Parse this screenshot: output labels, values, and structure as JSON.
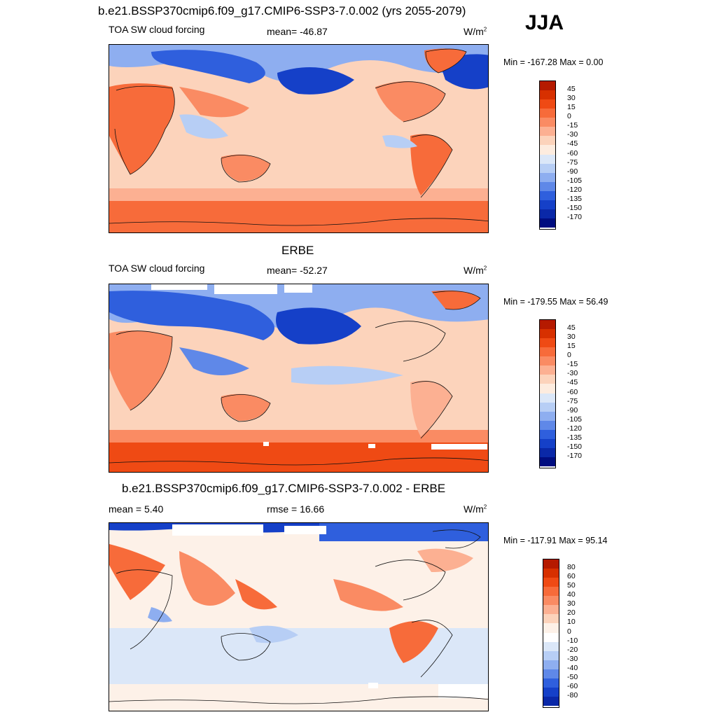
{
  "header": {
    "title": "b.e21.BSSP370cmip6.f09_g17.CMIP6-SSP3-7.0.002 (yrs 2055-2079)",
    "season": "JJA"
  },
  "panels": [
    {
      "title": "",
      "left_label": "TOA SW cloud forcing",
      "center_label": "mean= -46.87",
      "units": "W/m",
      "units_sup": "2",
      "minmax": "Min = -167.28 Max =   0.00",
      "colorbar_labels": [
        "45",
        "30",
        "15",
        "0",
        "-15",
        "-30",
        "-45",
        "-60",
        "-75",
        "-90",
        "-105",
        "-120",
        "-135",
        "-150",
        "-170"
      ]
    },
    {
      "title": "ERBE",
      "left_label": "TOA SW cloud forcing",
      "center_label": "mean= -52.27",
      "units": "W/m",
      "units_sup": "2",
      "minmax": "Min = -179.55 Max =  56.49",
      "colorbar_labels": [
        "45",
        "30",
        "15",
        "0",
        "-15",
        "-30",
        "-45",
        "-60",
        "-75",
        "-90",
        "-105",
        "-120",
        "-135",
        "-150",
        "-170"
      ]
    },
    {
      "title": "b.e21.BSSP370cmip6.f09_g17.CMIP6-SSP3-7.0.002 - ERBE",
      "left_label": "mean =   5.40",
      "center_label": "rmse =  16.66",
      "units": "W/m",
      "units_sup": "2",
      "minmax": "Min = -117.91 Max =  95.14",
      "colorbar_labels": [
        "80",
        "60",
        "50",
        "40",
        "30",
        "20",
        "10",
        "0",
        "-10",
        "-20",
        "-30",
        "-40",
        "-50",
        "-60",
        "-80"
      ]
    }
  ],
  "colors": {
    "forcing_scale": [
      "#8b0000",
      "#b51a00",
      "#d73000",
      "#ef4a14",
      "#f76b3a",
      "#fa8b63",
      "#fcb092",
      "#fcd3bb",
      "#fdecdf",
      "#dbe7f8",
      "#b7cef5",
      "#8eaef0",
      "#5f88e8",
      "#2f5fdd",
      "#1540c8",
      "#0a28a8",
      "#000d80"
    ],
    "diff_scale": [
      "#8b0000",
      "#b51a00",
      "#d73000",
      "#ef4a14",
      "#f76b3a",
      "#fa8b63",
      "#fcb092",
      "#fcd3bb",
      "#fdf1e8",
      "#ffffff",
      "#dbe7f8",
      "#b7cef5",
      "#8eaef0",
      "#5f88e8",
      "#2f5fdd",
      "#1540c8",
      "#0a28a8",
      "#000d80"
    ]
  },
  "chart_data": [
    {
      "type": "heatmap",
      "title": "",
      "variable": "TOA SW cloud forcing",
      "mean": -46.87,
      "min": -167.28,
      "max": 0.0,
      "units": "W/m2",
      "levels": [
        45,
        30,
        15,
        0,
        -15,
        -30,
        -45,
        -60,
        -75,
        -90,
        -105,
        -120,
        -135,
        -150,
        -170
      ]
    },
    {
      "type": "heatmap",
      "title": "ERBE",
      "variable": "TOA SW cloud forcing",
      "mean": -52.27,
      "min": -179.55,
      "max": 56.49,
      "units": "W/m2",
      "levels": [
        45,
        30,
        15,
        0,
        -15,
        -30,
        -45,
        -60,
        -75,
        -90,
        -105,
        -120,
        -135,
        -150,
        -170
      ]
    },
    {
      "type": "heatmap",
      "title": "b.e21.BSSP370cmip6.f09_g17.CMIP6-SSP3-7.0.002 - ERBE",
      "mean": 5.4,
      "rmse": 16.66,
      "min": -117.91,
      "max": 95.14,
      "units": "W/m2",
      "levels": [
        80,
        60,
        50,
        40,
        30,
        20,
        10,
        0,
        -10,
        -20,
        -30,
        -40,
        -50,
        -60,
        -80
      ]
    }
  ]
}
